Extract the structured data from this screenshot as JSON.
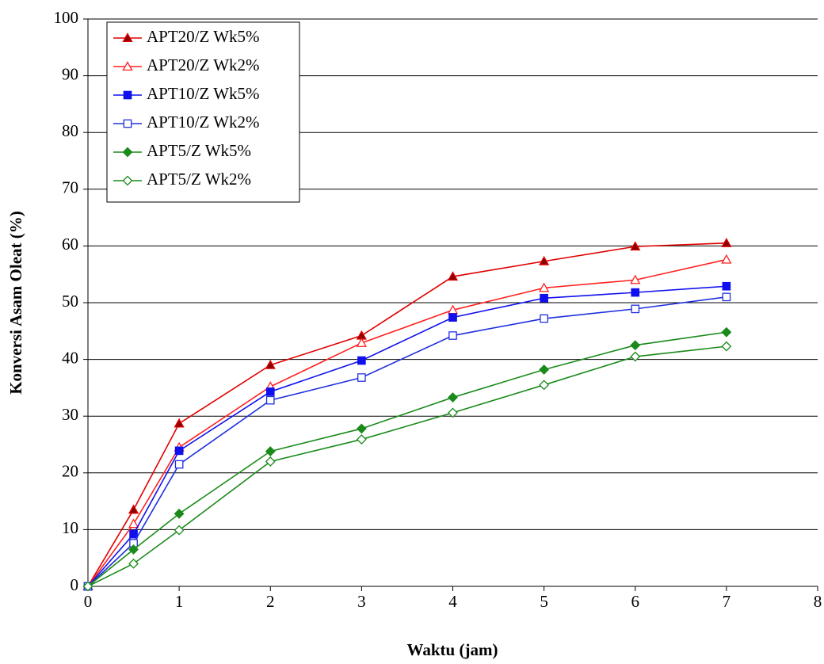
{
  "chart_data": {
    "type": "line",
    "x_label": "Waktu (jam)",
    "y_label": "Konversi Asam Oleat (%)",
    "x": [
      0,
      0.5,
      1,
      2,
      3,
      4,
      5,
      6,
      7
    ],
    "xlim": [
      0,
      8
    ],
    "xticks": [
      0,
      1,
      2,
      3,
      4,
      5,
      6,
      7,
      8
    ],
    "ylim": [
      0,
      100
    ],
    "yticks": [
      0,
      10,
      20,
      30,
      40,
      50,
      60,
      70,
      80,
      90,
      100
    ],
    "grid": true,
    "legend": "upper left",
    "series": [
      {
        "name": "APT20/Z Wk5%",
        "color": "#e00000",
        "marker": "triangle",
        "marker_fill": "#8b0000",
        "values": [
          0,
          13.5,
          28.7,
          39,
          44.2,
          54.6,
          57.3,
          59.9,
          60.5
        ]
      },
      {
        "name": "APT20/Z Wk2%",
        "color": "#ff2020",
        "marker": "triangle",
        "marker_fill": "#ffffff",
        "values": [
          0,
          11,
          24.5,
          35.2,
          42.9,
          48.7,
          52.6,
          54,
          57.6
        ]
      },
      {
        "name": "APT10/Z Wk5%",
        "color": "#1010ee",
        "marker": "square",
        "marker_fill": "#1010ee",
        "values": [
          0,
          9.2,
          23.9,
          34.3,
          39.8,
          47.4,
          50.8,
          51.8,
          52.9
        ]
      },
      {
        "name": "APT10/Z Wk2%",
        "color": "#2030dd",
        "marker": "square",
        "marker_fill": "#ffffff",
        "values": [
          0,
          7.6,
          21.5,
          32.8,
          36.8,
          44.2,
          47.2,
          48.9,
          51
        ]
      },
      {
        "name": "APT5/Z Wk5%",
        "color": "#1a8a1a",
        "marker": "diamond",
        "marker_fill": "#1a8a1a",
        "values": [
          0,
          6.5,
          12.8,
          23.8,
          27.8,
          33.3,
          38.2,
          42.5,
          44.8
        ]
      },
      {
        "name": "APT5/Z Wk2%",
        "color": "#1a8a1a",
        "marker": "diamond",
        "marker_fill": "#ffffff",
        "values": [
          0,
          4,
          9.9,
          22,
          25.9,
          30.6,
          35.5,
          40.5,
          42.3
        ]
      }
    ]
  }
}
